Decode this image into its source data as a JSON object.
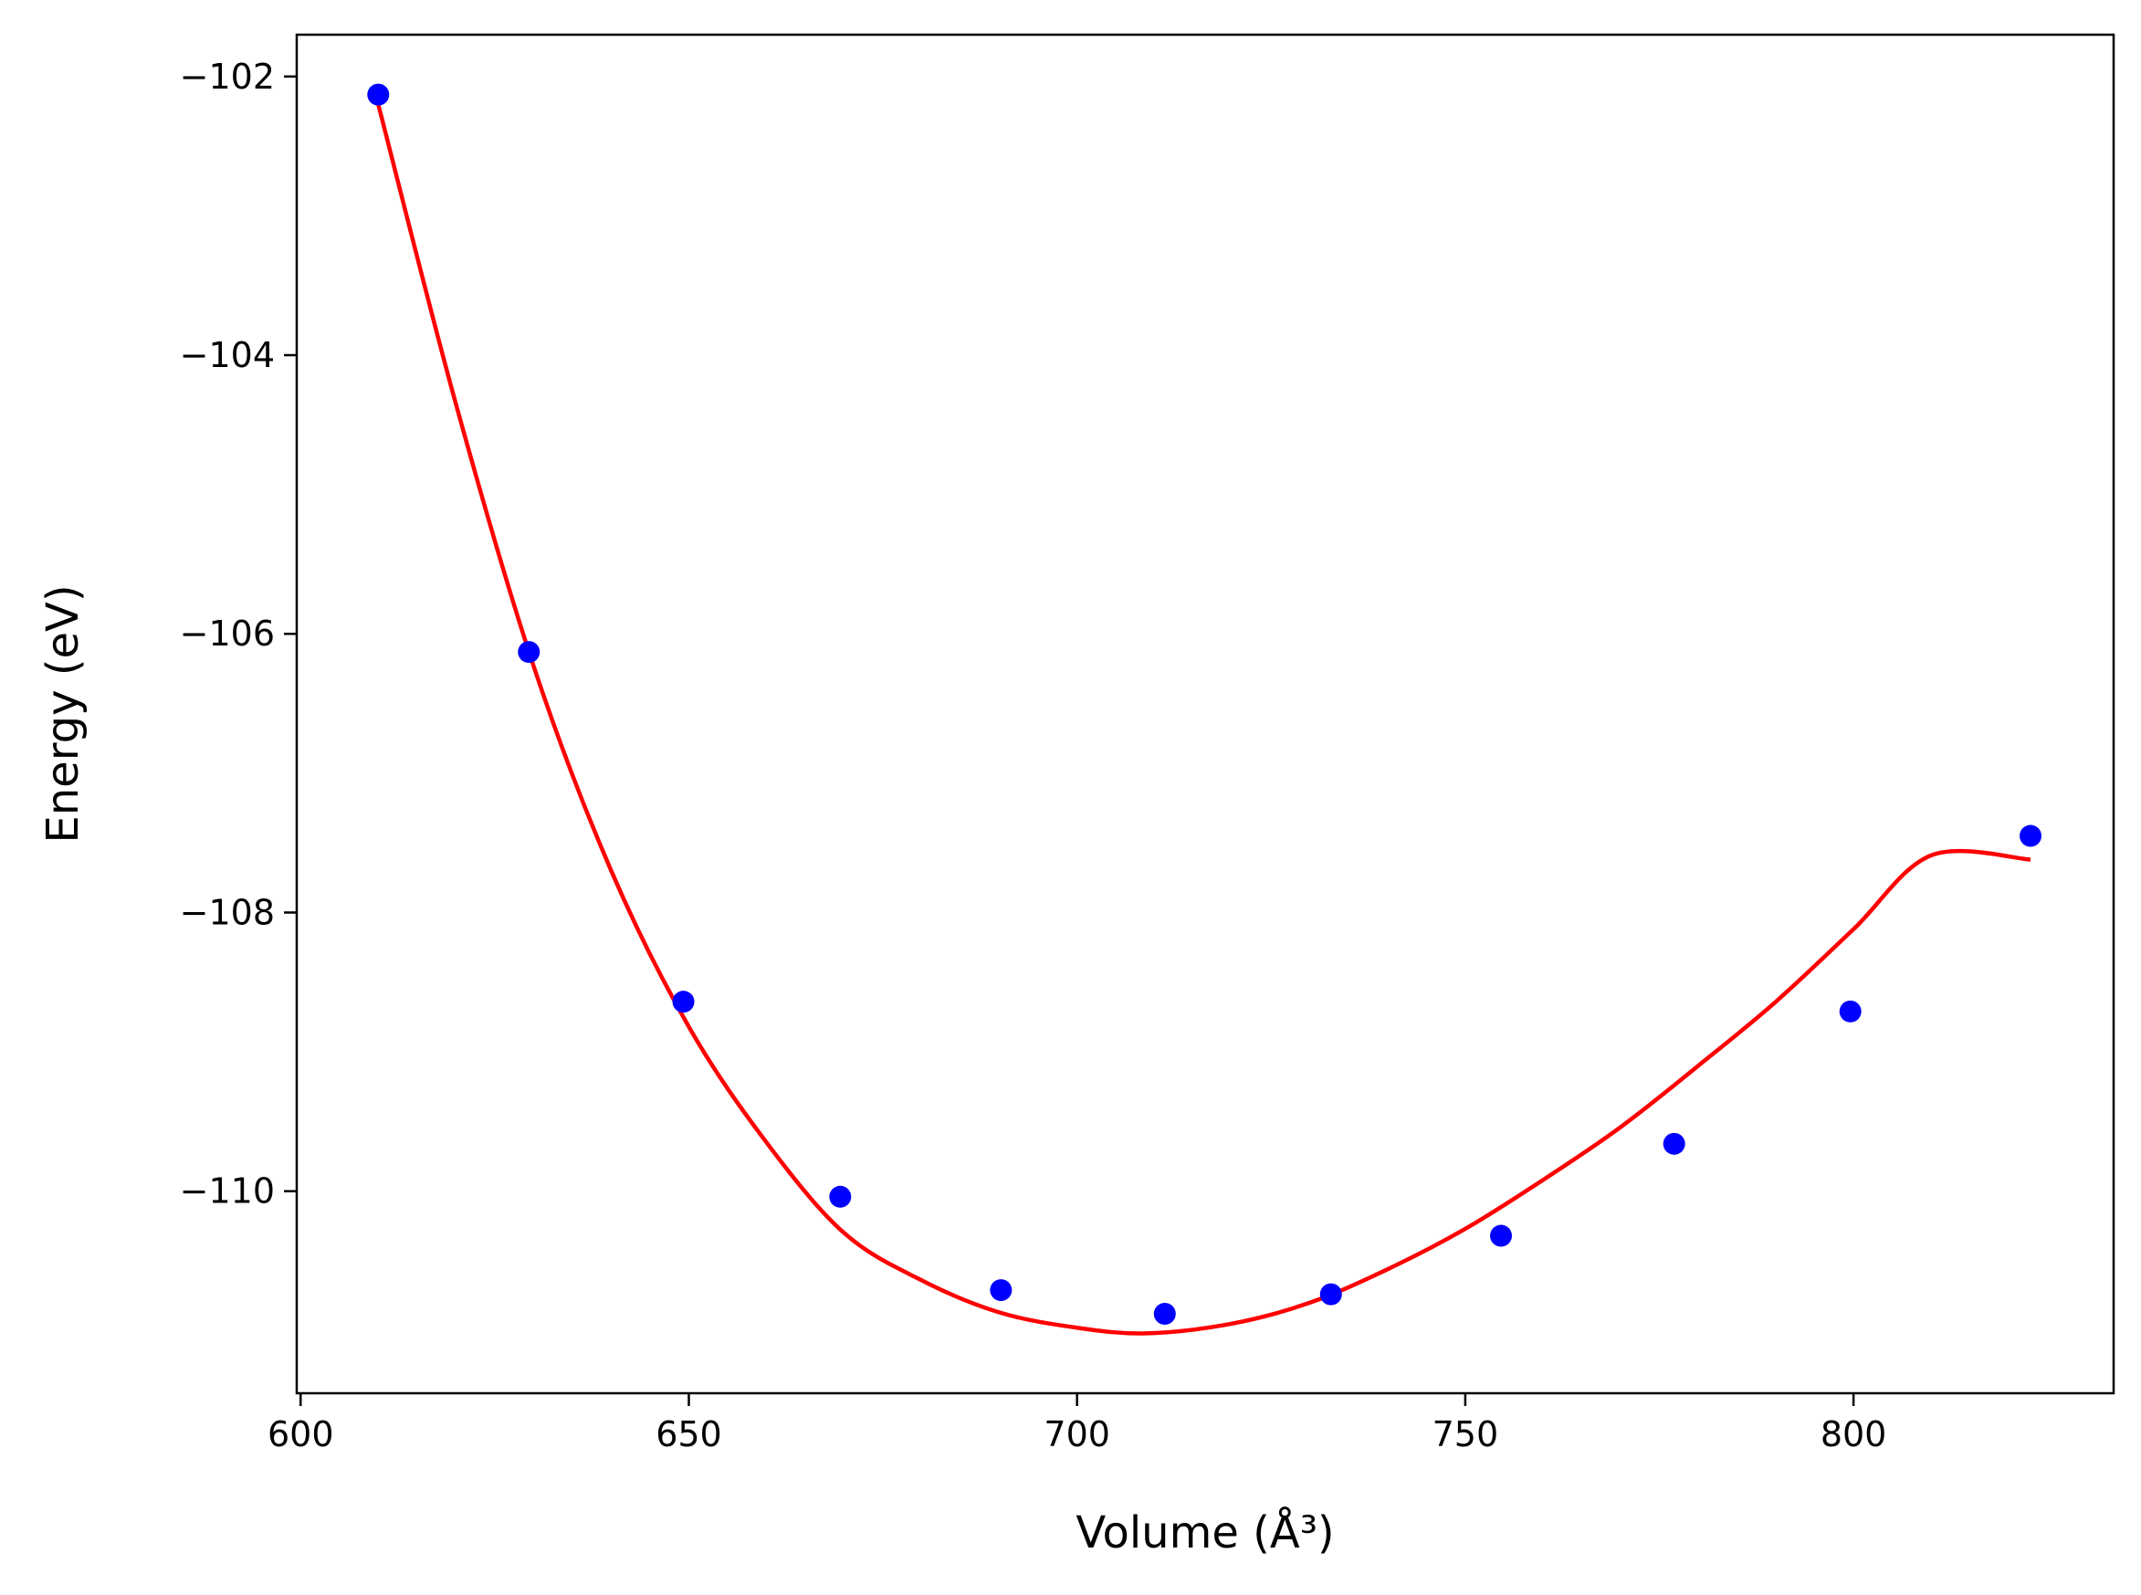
{
  "chart_data": {
    "type": "scatter",
    "title": "",
    "xlabel": "Volume (Å³)",
    "ylabel": "Energy (eV)",
    "xlim": [
      599.5,
      833.5
    ],
    "ylim": [
      -111.45,
      -101.7
    ],
    "xticks": [
      600,
      650,
      700,
      750,
      800
    ],
    "yticks": [
      -102,
      -104,
      -106,
      -108,
      -110
    ],
    "xtick_labels": [
      "600",
      "650",
      "700",
      "750",
      "800"
    ],
    "ytick_labels": [
      "−102",
      "−104",
      "−106",
      "−108",
      "−110"
    ],
    "grid": false,
    "legend": "none",
    "series": [
      {
        "kind": "points",
        "color": "#0000ff",
        "x": [
          610.0,
          629.4,
          649.3,
          669.5,
          690.2,
          711.3,
          732.7,
          754.6,
          776.9,
          799.6,
          822.8
        ],
        "y": [
          -102.13,
          -106.13,
          -108.64,
          -110.04,
          -110.71,
          -110.88,
          -110.74,
          -110.32,
          -109.66,
          -108.71,
          -107.45
        ]
      },
      {
        "kind": "fit-line",
        "color": "#ff0000",
        "x": [
          610,
          620,
          630,
          640,
          650,
          660,
          670,
          680,
          690,
          700,
          709,
          720,
          730,
          740,
          750,
          760,
          770,
          780,
          790,
          800,
          810,
          822.8
        ],
        "y": [
          -102.2,
          -104.35,
          -106.23,
          -107.7,
          -108.82,
          -109.65,
          -110.3,
          -110.64,
          -110.87,
          -110.98,
          -111.02,
          -110.95,
          -110.8,
          -110.56,
          -110.27,
          -109.92,
          -109.54,
          -109.1,
          -108.64,
          -108.12,
          -107.59,
          -107.62
        ]
      }
    ]
  }
}
